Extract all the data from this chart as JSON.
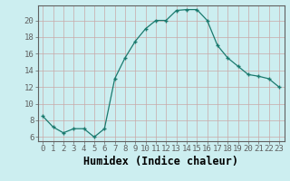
{
  "x": [
    0,
    1,
    2,
    3,
    4,
    5,
    6,
    7,
    8,
    9,
    10,
    11,
    12,
    13,
    14,
    15,
    16,
    17,
    18,
    19,
    20,
    21,
    22,
    23
  ],
  "y": [
    8.5,
    7.2,
    6.5,
    7.0,
    7.0,
    6.0,
    7.0,
    13.0,
    15.5,
    17.5,
    19.0,
    20.0,
    20.0,
    21.2,
    21.3,
    21.3,
    20.0,
    17.0,
    15.5,
    14.5,
    13.5,
    13.3,
    13.0,
    12.0
  ],
  "xlabel": "Humidex (Indice chaleur)",
  "ylabel_ticks": [
    6,
    8,
    10,
    12,
    14,
    16,
    18,
    20
  ],
  "xlim": [
    -0.5,
    23.5
  ],
  "ylim": [
    5.5,
    21.8
  ],
  "line_color": "#1a7a6e",
  "marker": "+",
  "bg_color": "#cceef0",
  "grid_color": "#c8a8a8",
  "axis_color": "#606060",
  "tick_label_fontsize": 6.5,
  "xlabel_fontsize": 8.5
}
